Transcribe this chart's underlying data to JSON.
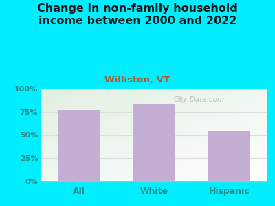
{
  "title": "Change in non-family household\nincome between 2000 and 2022",
  "subtitle": "Williston, VT",
  "categories": [
    "All",
    "White",
    "Hispanic"
  ],
  "values": [
    77,
    83,
    54
  ],
  "bar_color": "#c4aed4",
  "title_fontsize": 11.5,
  "subtitle_fontsize": 9.5,
  "subtitle_color": "#b05a2a",
  "title_color": "#1a1a1a",
  "tick_label_color": "#2a8a8a",
  "background_outer": "#00eeff",
  "ylim": [
    0,
    100
  ],
  "yticks": [
    0,
    25,
    50,
    75,
    100
  ],
  "ytick_labels": [
    "0%",
    "25%",
    "50%",
    "75%",
    "100%"
  ],
  "watermark": "City-Data.com",
  "bar_width": 0.55,
  "grid_color": "#dddddd"
}
